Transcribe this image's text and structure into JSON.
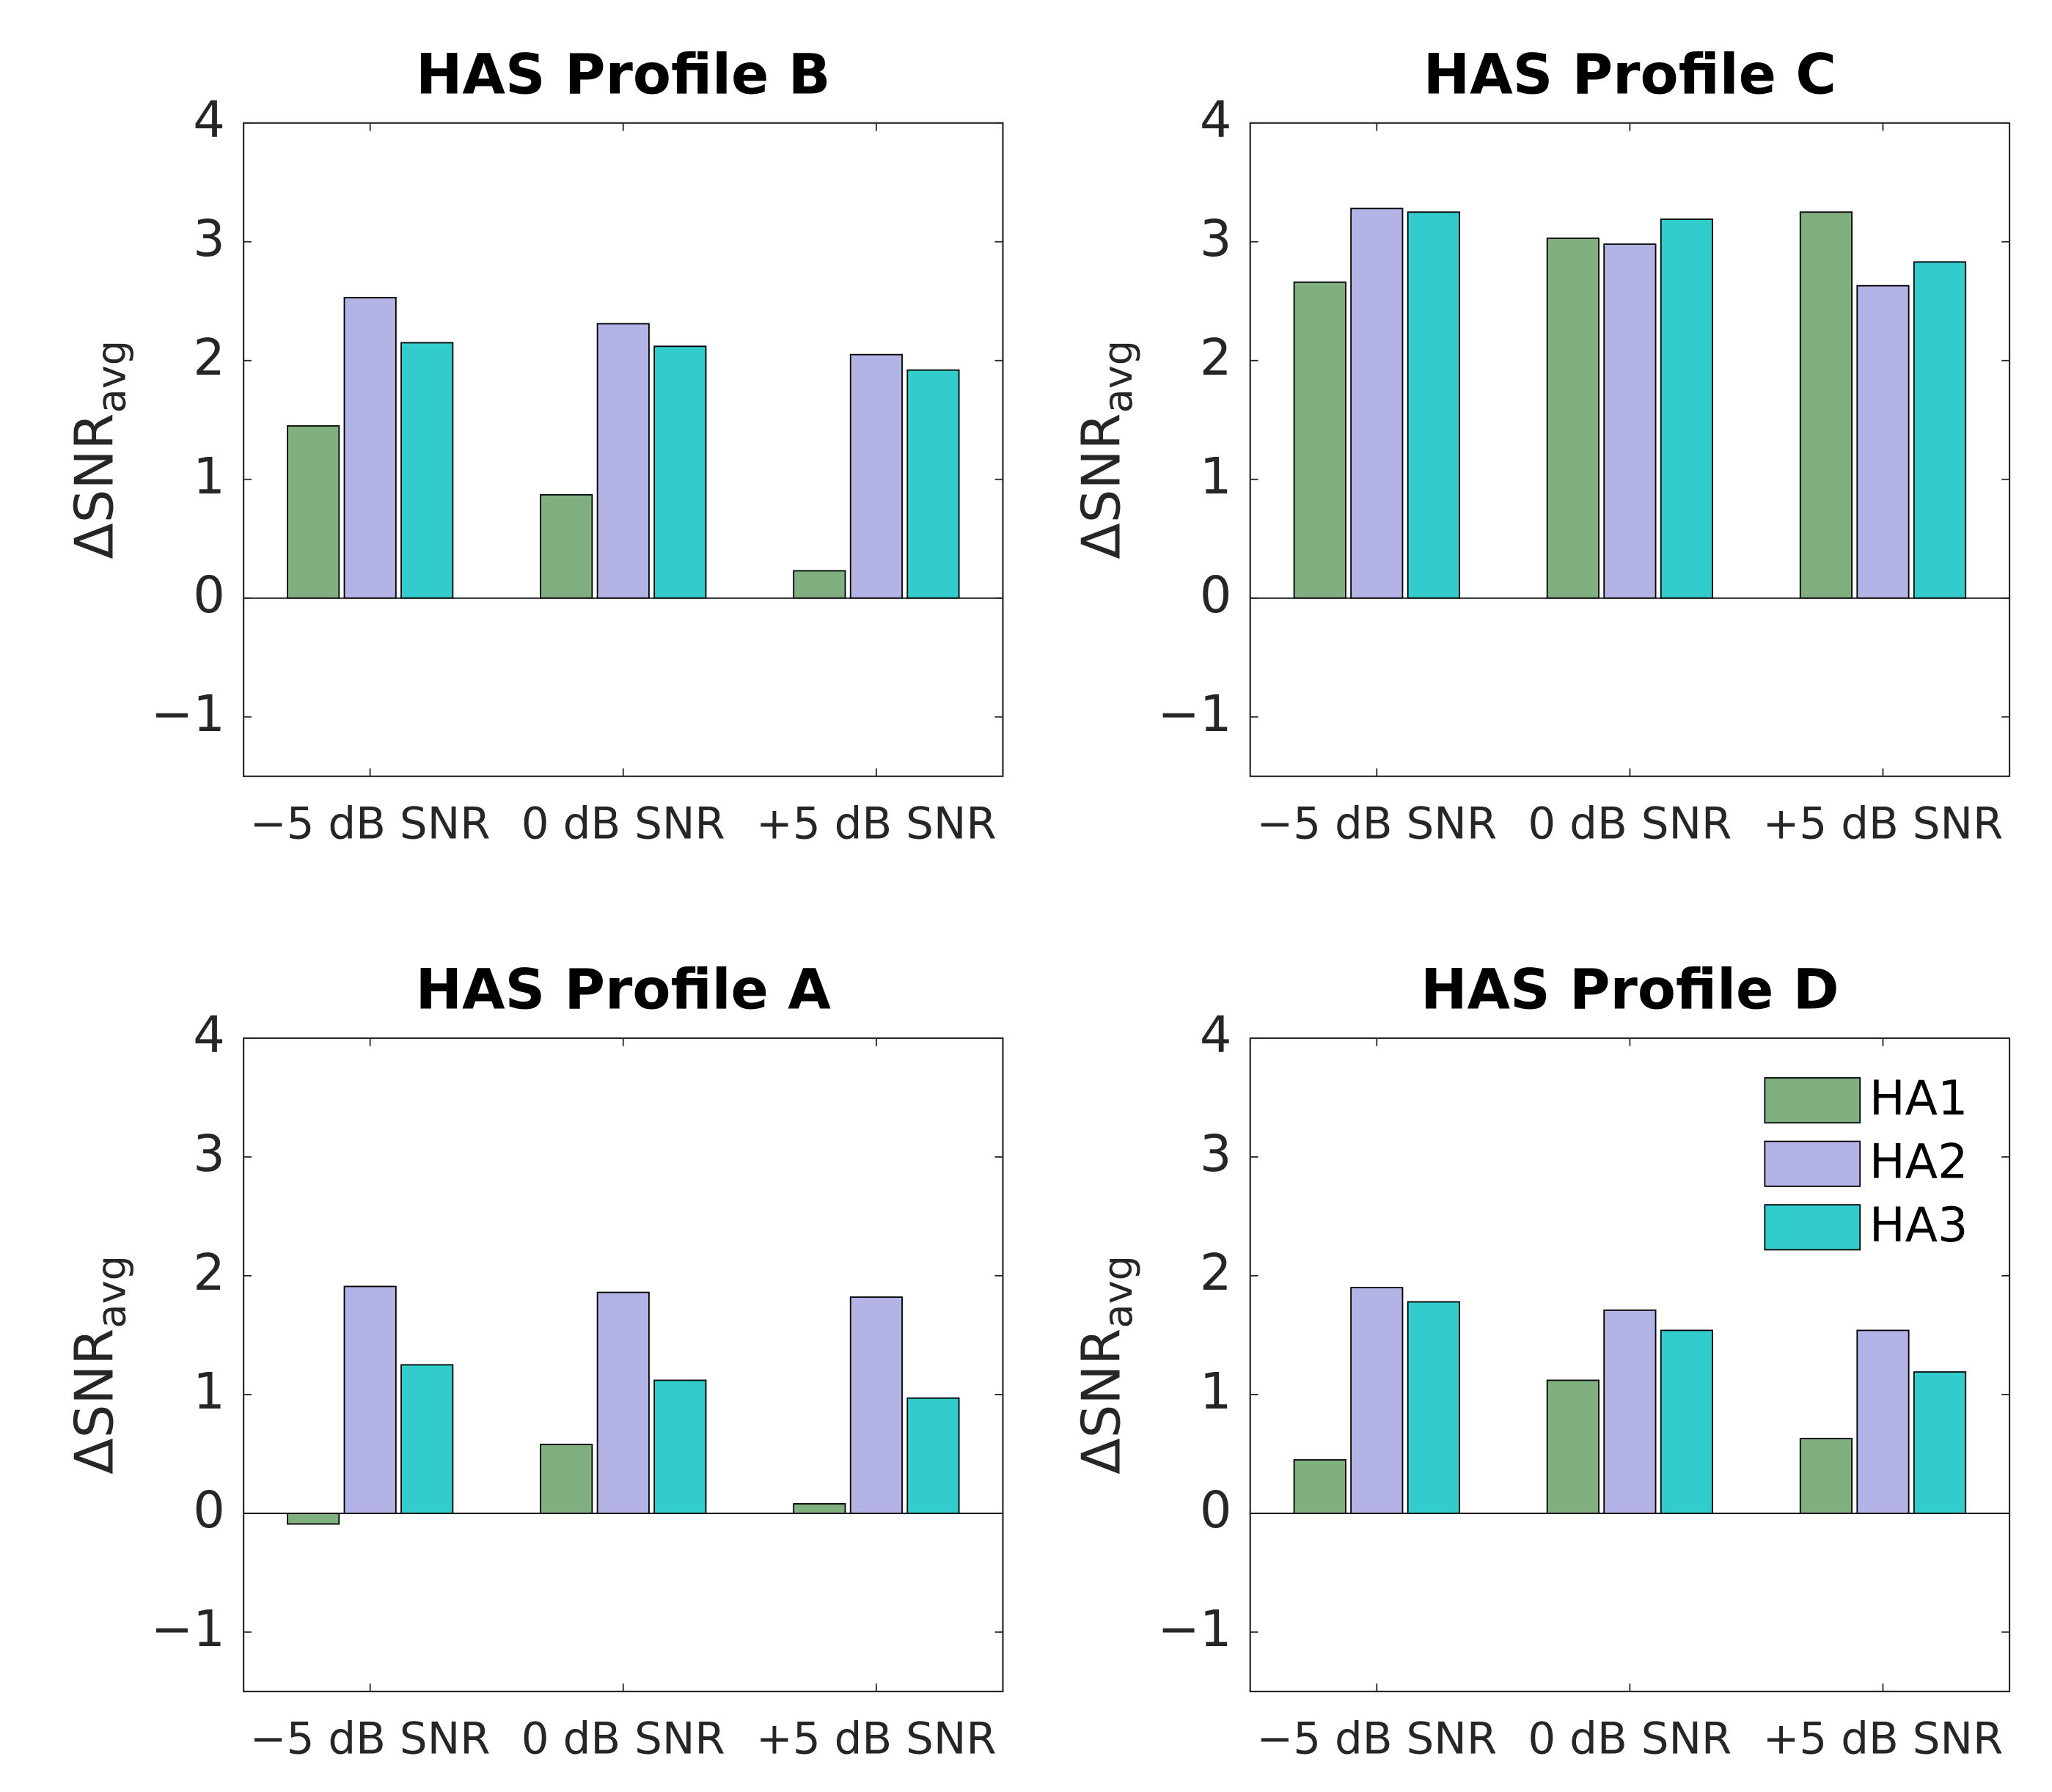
{
  "chart_data": [
    {
      "type": "bar",
      "title": "HAS Profile B",
      "ylabel": "ΔSNR",
      "ylabel_subscript": "avg",
      "categories": [
        "−5 dB SNR",
        "0 dB SNR",
        "+5 dB SNR"
      ],
      "series": [
        {
          "name": "HA1",
          "color": "#80b080",
          "values": [
            1.45,
            0.87,
            0.23
          ]
        },
        {
          "name": "HA2",
          "color": "#b3b3e6",
          "values": [
            2.53,
            2.31,
            2.05
          ]
        },
        {
          "name": "HA3",
          "color": "#33cccc",
          "values": [
            2.15,
            2.12,
            1.92
          ]
        }
      ],
      "ylim": [
        -1.5,
        4
      ],
      "yticks": [
        {
          "value": -1,
          "label": "−1"
        },
        0,
        1,
        2,
        3,
        4
      ]
    },
    {
      "type": "bar",
      "title": "HAS Profile C",
      "ylabel": "ΔSNR",
      "ylabel_subscript": "avg",
      "categories": [
        "−5 dB SNR",
        "0 dB SNR",
        "+5 dB SNR"
      ],
      "series": [
        {
          "name": "HA1",
          "color": "#80b080",
          "values": [
            2.66,
            3.03,
            3.25
          ]
        },
        {
          "name": "HA2",
          "color": "#b3b3e6",
          "values": [
            3.28,
            2.98,
            2.63
          ]
        },
        {
          "name": "HA3",
          "color": "#33cccc",
          "values": [
            3.25,
            3.19,
            2.83
          ]
        }
      ],
      "ylim": [
        -1.5,
        4
      ],
      "yticks": [
        {
          "value": -1,
          "label": "−1"
        },
        0,
        1,
        2,
        3,
        4
      ]
    },
    {
      "type": "bar",
      "title": "HAS Profile A",
      "ylabel": "ΔSNR",
      "ylabel_subscript": "avg",
      "categories": [
        "−5 dB SNR",
        "0 dB SNR",
        "+5 dB SNR"
      ],
      "series": [
        {
          "name": "HA1",
          "color": "#80b080",
          "values": [
            -0.09,
            0.58,
            0.08
          ]
        },
        {
          "name": "HA2",
          "color": "#b3b3e6",
          "values": [
            1.91,
            1.86,
            1.82
          ]
        },
        {
          "name": "HA3",
          "color": "#33cccc",
          "values": [
            1.25,
            1.12,
            0.97
          ]
        }
      ],
      "ylim": [
        -1.5,
        4
      ],
      "yticks": [
        {
          "value": -1,
          "label": "−1"
        },
        0,
        1,
        2,
        3,
        4
      ]
    },
    {
      "type": "bar",
      "title": "HAS Profile D",
      "ylabel": "ΔSNR",
      "ylabel_subscript": "avg",
      "categories": [
        "−5 dB SNR",
        "0 dB SNR",
        "+5 dB SNR"
      ],
      "series": [
        {
          "name": "HA1",
          "color": "#80b080",
          "values": [
            0.45,
            1.12,
            0.63
          ]
        },
        {
          "name": "HA2",
          "color": "#b3b3e6",
          "values": [
            1.9,
            1.71,
            1.54
          ]
        },
        {
          "name": "HA3",
          "color": "#33cccc",
          "values": [
            1.78,
            1.54,
            1.19
          ]
        }
      ],
      "ylim": [
        -1.5,
        4
      ],
      "yticks": [
        {
          "value": -1,
          "label": "−1"
        },
        0,
        1,
        2,
        3,
        4
      ],
      "legend": "upper right"
    }
  ]
}
